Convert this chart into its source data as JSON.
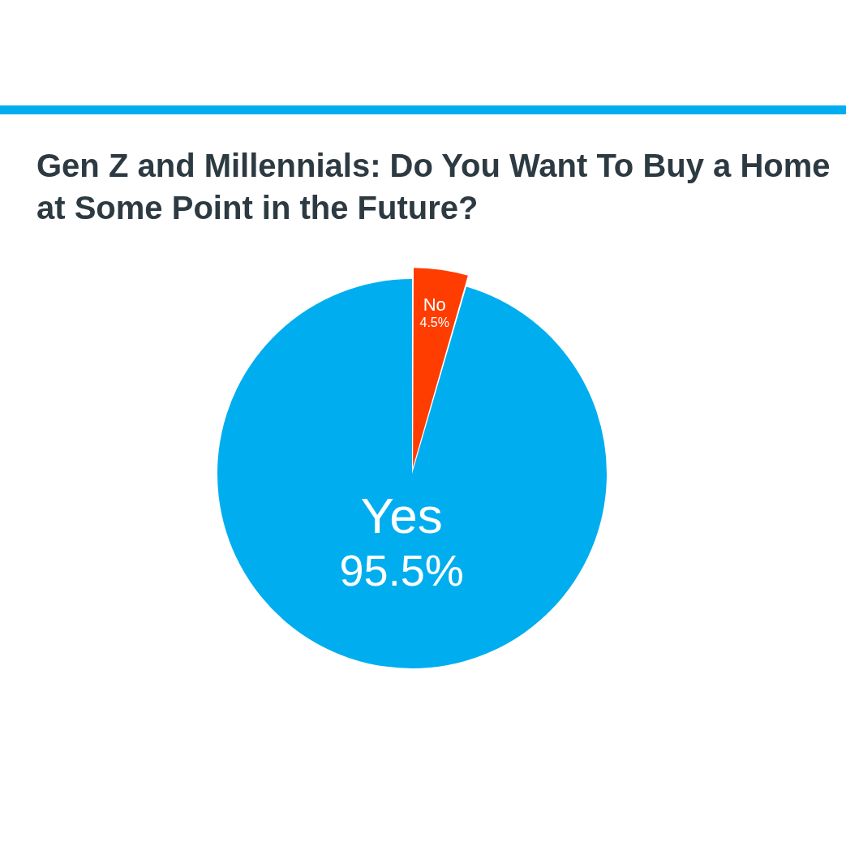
{
  "chart_data": {
    "type": "pie",
    "title": "Gen Z and Millennials: Do You Want To Buy a Home at Some Point in the Future?",
    "categories": [
      "No",
      "Yes"
    ],
    "values": [
      4.5,
      95.5
    ],
    "value_labels": [
      "4.5%",
      "95.5%"
    ],
    "colors": [
      "#ff3d00",
      "#00aeef"
    ],
    "legend": false
  }
}
